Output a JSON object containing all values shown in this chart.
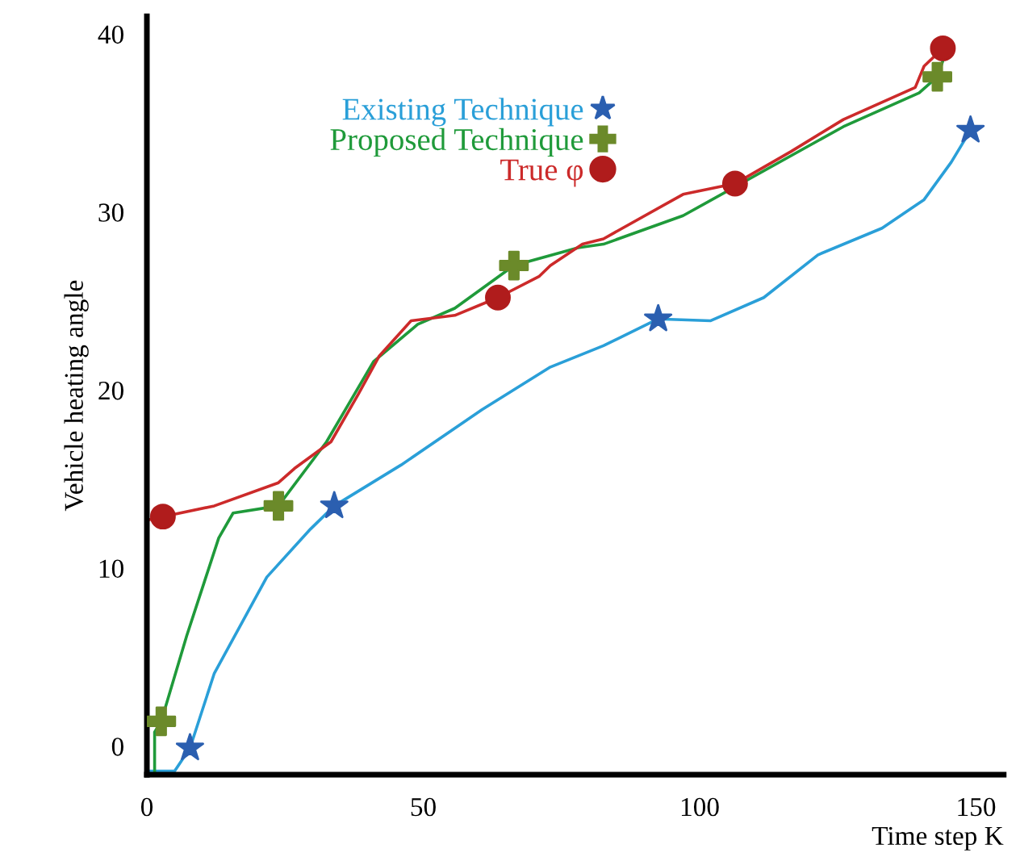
{
  "chart_data": {
    "type": "line",
    "xlabel": "Time step K",
    "ylabel": "Vehicle heating angle",
    "xlim": [
      0,
      155
    ],
    "ylim": [
      -1.6,
      41
    ],
    "xticks": [
      0,
      50,
      100,
      150
    ],
    "yticks": [
      0,
      10,
      20,
      30,
      40
    ],
    "grid": false,
    "legend": "top",
    "line_style": "solid",
    "series": [
      {
        "color": "#2a9fd8",
        "x": [
          0.6,
          5,
          7.8,
          12.2,
          21.7,
          29.6,
          33.9,
          46,
          60.6,
          73,
          82.6,
          92.5,
          102,
          111.6,
          121.4,
          133,
          140.6,
          145.5,
          149
        ],
        "values": [
          -1.4,
          -1.4,
          -0.1,
          4.1,
          9.5,
          12.2,
          13.5,
          15.8,
          18.9,
          21.3,
          22.5,
          24,
          23.9,
          25.2,
          27.6,
          29.1,
          30.7,
          32.8,
          34.6
        ]
      },
      {
        "color": "#1f9a3a",
        "x": [
          1.4,
          1.4,
          2.6,
          7.2,
          13,
          15.6,
          23.8,
          32.5,
          41,
          49,
          55.7,
          66.4,
          78,
          82.6,
          97,
          126,
          139.7,
          143,
          144
        ],
        "values": [
          -1.4,
          0.8,
          1.4,
          6.2,
          11.7,
          13.1,
          13.5,
          17.1,
          21.6,
          23.7,
          24.6,
          27,
          28,
          28.2,
          29.8,
          34.8,
          36.7,
          37.6,
          38.5
        ]
      },
      {
        "color": "#cc2a2a",
        "x": [
          0,
          2.9,
          12.2,
          23.8,
          26.7,
          33.3,
          38.3,
          42,
          47.8,
          55.7,
          63.5,
          71,
          73,
          78.8,
          82.6,
          97,
          106.4,
          116.5,
          126,
          139,
          140.6,
          144
        ],
        "values": [
          12.7,
          12.9,
          13.5,
          14.8,
          15.6,
          17.1,
          19.8,
          21.9,
          23.9,
          24.2,
          25.2,
          26.4,
          27,
          28.2,
          28.5,
          31,
          31.6,
          33.4,
          35.2,
          37,
          38.2,
          39.2
        ]
      },
      {
        "type": "scatter",
        "name": "Existing Technique",
        "color": "#2b5fb0",
        "marker": "star",
        "x": [
          7.8,
          33.9,
          92.5,
          149
        ],
        "values": [
          -0.1,
          13.5,
          24,
          34.6
        ]
      },
      {
        "type": "scatter",
        "name": "Proposed Technique",
        "color": "#6b8a2a",
        "marker": "cross",
        "x": [
          2.6,
          23.8,
          66.4,
          143
        ],
        "values": [
          1.4,
          13.5,
          27,
          37.6
        ]
      },
      {
        "type": "scatter",
        "name": "True φ",
        "color": "#b01c1c",
        "marker": "circle",
        "x": [
          2.9,
          63.5,
          106.4,
          144
        ],
        "values": [
          12.9,
          25.2,
          31.6,
          39.2
        ]
      }
    ]
  }
}
